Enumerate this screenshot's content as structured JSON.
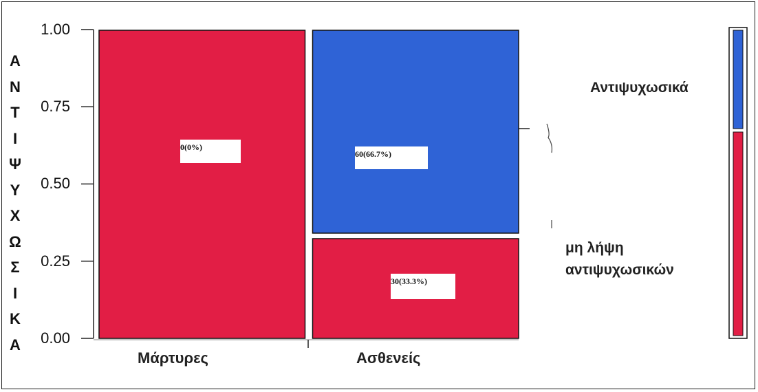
{
  "chart_data": {
    "type": "mosaic",
    "ylabel": "ΑΝΤΙΨΥΧΩΣΙΚΑ",
    "yticks": [
      "1.00",
      "0.75",
      "0.50",
      "0.25",
      "0.00"
    ],
    "ylim": [
      0,
      1
    ],
    "categories": [
      "Μάρτυρες",
      "Ασθενείς"
    ],
    "category_widths": [
      0.5,
      0.5
    ],
    "series": [
      {
        "name": "Αντιψυχωσικά",
        "color": "#2f63d6",
        "proportions": [
          0.0,
          0.667
        ]
      },
      {
        "name": "μη λήψη αντιψυχωσικών",
        "color": "#e21e45",
        "proportions": [
          1.0,
          0.333
        ]
      }
    ],
    "data_labels": [
      {
        "category": "Μάρτυρες",
        "text": "0(0%)"
      },
      {
        "category": "Ασθενείς",
        "series": "Αντιψυχωσικά",
        "text": "60(66.7%)"
      },
      {
        "category": "Ασθενείς",
        "series": "μη λήψη αντιψυχωσικών",
        "text": "30(33.3%)"
      }
    ],
    "legend": {
      "position": "right",
      "entries": [
        {
          "label": "Αντιψυχωσικά",
          "color": "#2f63d6"
        },
        {
          "label_lines": [
            "μη λήψη",
            "αντιψυχωσικών"
          ],
          "color": "#e21e45"
        }
      ]
    }
  }
}
